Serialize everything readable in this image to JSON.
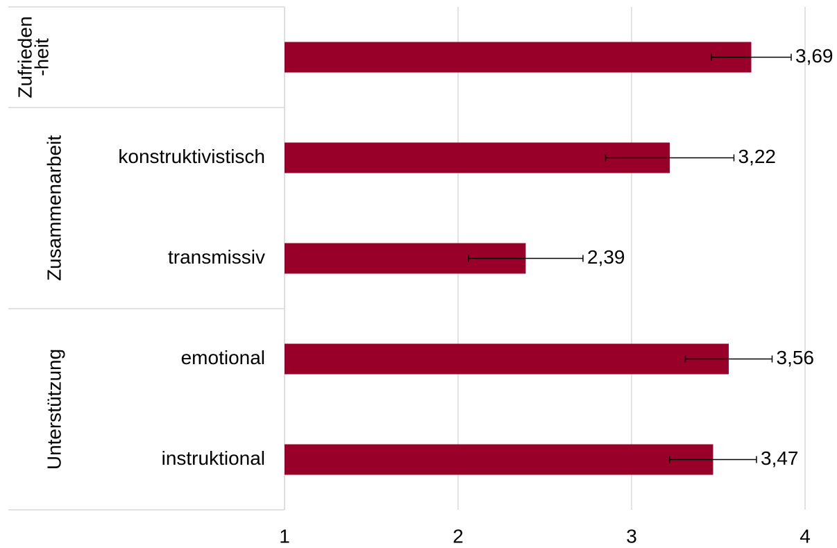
{
  "chart_data": {
    "type": "bar",
    "orientation": "horizontal",
    "groups": [
      {
        "name": [
          "Zufrieden",
          "-heit"
        ],
        "categories": [
          null
        ]
      },
      {
        "name": [
          "Zusammenarbeit"
        ],
        "categories": [
          "konstruktivistisch",
          "transmissiv"
        ]
      },
      {
        "name": [
          "Unterstützung"
        ],
        "categories": [
          "emotional",
          "instruktional"
        ]
      }
    ],
    "values": [
      3.69,
      3.22,
      2.39,
      3.56,
      3.47
    ],
    "value_labels": [
      "3,69",
      "3,22",
      "2,39",
      "3,56",
      "3,47"
    ],
    "errors": [
      0.23,
      0.37,
      0.33,
      0.25,
      0.25
    ],
    "color": "#990029",
    "xlim": [
      1,
      4
    ],
    "xticks": [
      1,
      2,
      3,
      4
    ],
    "grid": true
  }
}
